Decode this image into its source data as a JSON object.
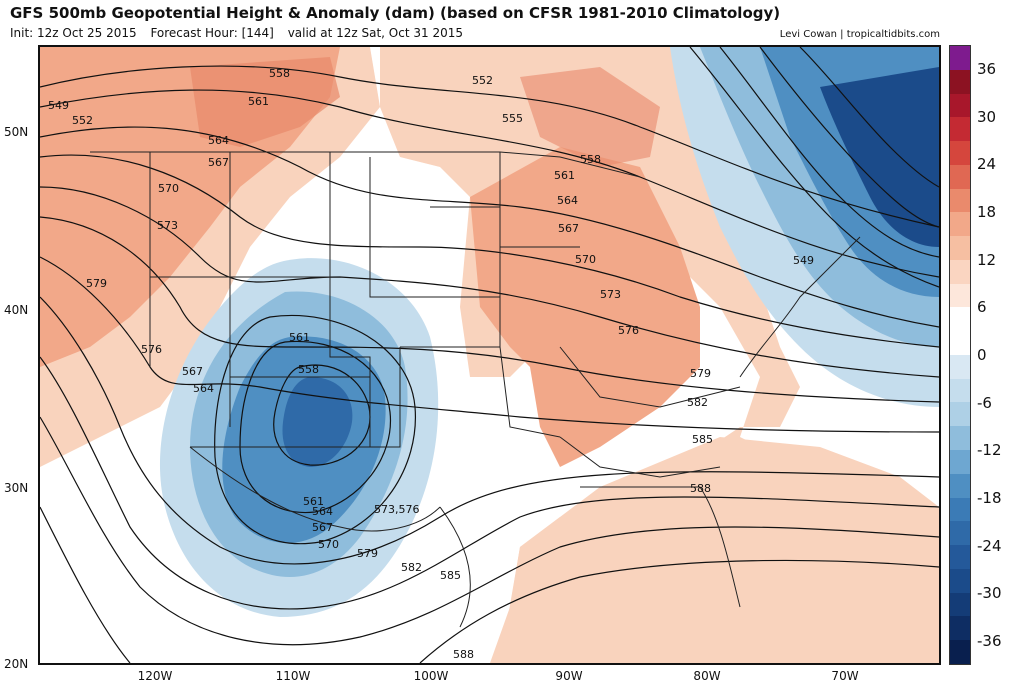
{
  "header": {
    "title": "GFS 500mb Geopotential Height & Anomaly (dam) (based on CFSR 1981-2010 Climatology)",
    "init": "Init: 12z Oct 25 2015",
    "forecast_hour": "Forecast Hour: [144]",
    "valid": "valid at 12z Sat, Oct 31 2015",
    "credit": "Levi Cowan | tropicaltidbits.com"
  },
  "map": {
    "latitude_labels": [
      "50N",
      "40N",
      "30N",
      "20N"
    ],
    "longitude_labels": [
      "120W",
      "110W",
      "100W",
      "90W",
      "80W",
      "70W"
    ],
    "contour_labels": [
      "549",
      "552",
      "558",
      "561",
      "564",
      "567",
      "570",
      "573",
      "579",
      "552",
      "555",
      "558",
      "561",
      "564",
      "567",
      "570",
      "573",
      "576",
      "579",
      "582",
      "585",
      "588",
      "549",
      "576",
      "567",
      "564",
      "561",
      "558",
      "561",
      "564",
      "567",
      "570",
      "573,576",
      "579",
      "582",
      "585",
      "588"
    ],
    "colors": {
      "positive_light": "#f9d3bd",
      "positive_mid": "#f2a889",
      "positive_strong": "#e8896a",
      "negative_light": "#c5dded",
      "negative_mid": "#8fbddc",
      "negative_strong": "#4f8fc2",
      "negative_deep": "#2f6aa8",
      "negative_darkest": "#1b4b8a"
    }
  },
  "colorbar": {
    "tick_labels": [
      "36",
      "30",
      "24",
      "18",
      "12",
      "6",
      "0",
      "-6",
      "-12",
      "-18",
      "-24",
      "-30",
      "-36"
    ],
    "segment_colors": [
      "#7e1b8e",
      "#8c1222",
      "#a8172b",
      "#c42a33",
      "#d5463d",
      "#e06853",
      "#ea8a6c",
      "#f2a889",
      "#f6bfa2",
      "#fad5c1",
      "#fde7db",
      "#ffffff",
      "#ffffff",
      "#d9e8f3",
      "#c5dded",
      "#aed0e6",
      "#8fbddc",
      "#6ea7d1",
      "#4f8fc2",
      "#3b7bb6",
      "#2f6aa8",
      "#24599a",
      "#1b4b8a",
      "#143c77",
      "#0e2d63",
      "#091f4e"
    ]
  }
}
